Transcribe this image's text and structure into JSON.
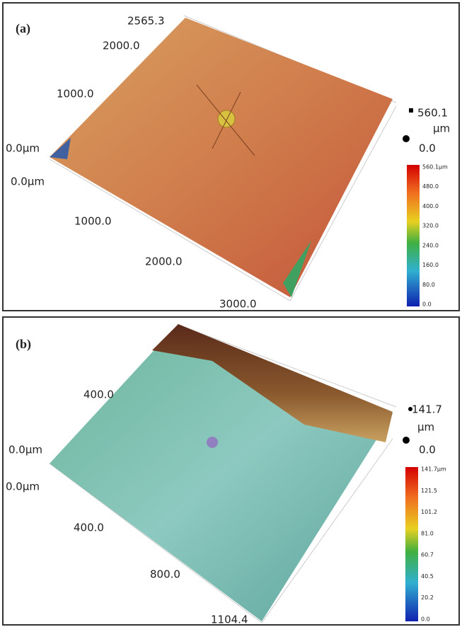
{
  "panels": [
    {
      "label": "(a)",
      "axis_labels": [
        "2565.3",
        "2000.0",
        "1000.0",
        "0.0µm",
        "0.0µm",
        "1000.0",
        "2000.0",
        "3000.0"
      ],
      "z_max": "560.1",
      "z_unit": "µm",
      "z_min": "0.0",
      "colorbar": [
        "560.1µm",
        "480.0",
        "400.0",
        "320.0",
        "240.0",
        "160.0",
        "80.0",
        "0.0"
      ]
    },
    {
      "label": "(b)",
      "axis_labels": [
        "400.0",
        "0.0µm",
        "0.0µm",
        "400.0",
        "800.0",
        "1104.4"
      ],
      "z_max": "141.7",
      "z_unit": "µm",
      "z_min": "0.0",
      "colorbar": [
        "141.7µm",
        "121.5",
        "101.2",
        "81.0",
        "60.7",
        "40.5",
        "20.2",
        "0.0"
      ]
    }
  ]
}
